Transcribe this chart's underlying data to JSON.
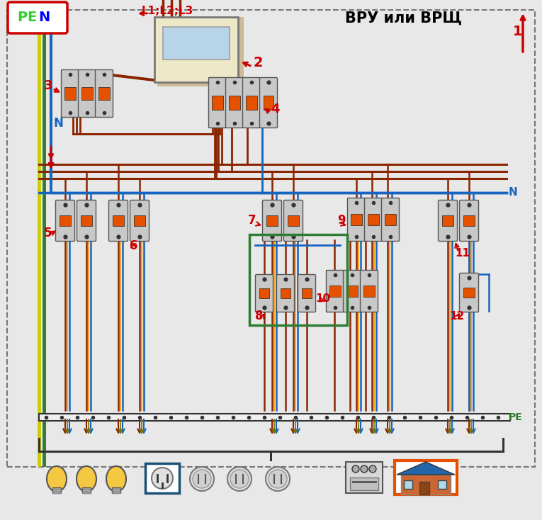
{
  "bg_color": "#e8e8e8",
  "title": "ВРУ или ВРЩ",
  "pen_label": "PEN",
  "l_label": "L1;L2;L3",
  "n_label": "N",
  "pe_label": "PE",
  "red": "#cc0000",
  "brown": "#7B3000",
  "blue": "#1565C0",
  "orange": "#E65100",
  "green": "#2E7D32",
  "yellow": "#cccc00",
  "gray": "#9E9E9E",
  "light_gray": "#c8c8c8",
  "dark_gray": "#424242",
  "white": "#FFFFFF",
  "beige": "#EDE8C8",
  "pen_border": "#cc0000",
  "pen_text_p": "#33cc33",
  "pen_text_n": "#0000ff",
  "outer_border": "#888888",
  "green_box": "#2E7D32",
  "blue_box": "#1a5276",
  "orange_box": "#E65100",
  "phase_wire": "#8B2500",
  "neutral_wire": "#1565C0",
  "pe_wire": "#cccc00",
  "pe_wire2": "#2E7D32"
}
